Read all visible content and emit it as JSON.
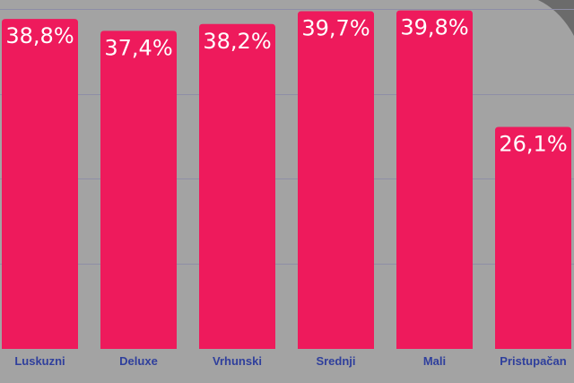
{
  "chart_data": {
    "type": "bar",
    "categories": [
      "Luskuzni",
      "Deluxe",
      "Vrhunski",
      "Srednji",
      "Mali",
      "Pristupačan"
    ],
    "values": [
      38.8,
      37.4,
      38.2,
      39.7,
      39.8,
      26.1
    ],
    "value_labels": [
      "38,8%",
      "37,4%",
      "38,2%",
      "39,7%",
      "39,8%",
      "26,1%"
    ],
    "ylim": [
      0,
      40.6
    ],
    "grid": true,
    "title": "",
    "xlabel": "",
    "ylabel": ""
  },
  "colors": {
    "background": "#a3a3a3",
    "bar": "#ee1a5c",
    "gridline": "#8e8ea6",
    "category_text": "#2f3f9c",
    "value_text": "#ffffff",
    "corner_shade": "#6b6b6b"
  }
}
